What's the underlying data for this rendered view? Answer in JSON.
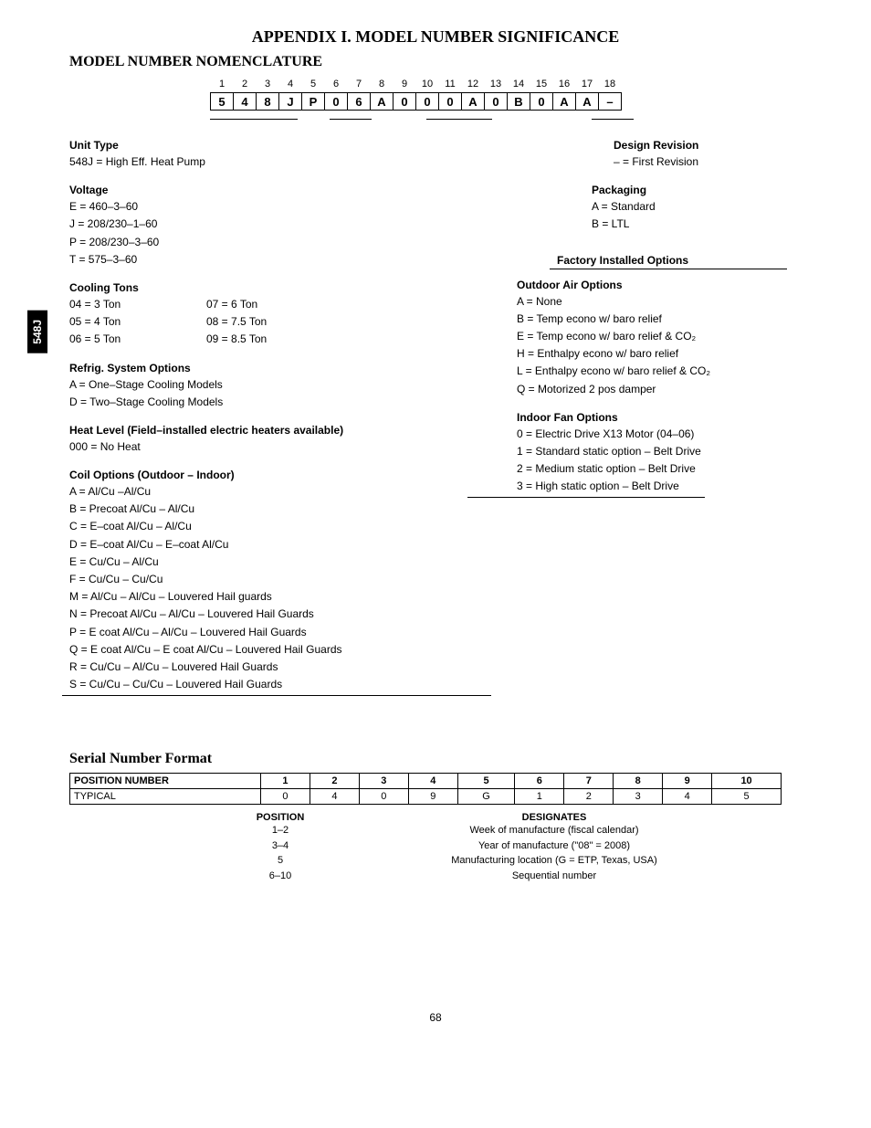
{
  "side_tab": "548J",
  "appendix_title": "APPENDIX I. MODEL NUMBER SIGNIFICANCE",
  "nomenclature_heading": "MODEL NUMBER NOMENCLATURE",
  "position_numbers": [
    "1",
    "2",
    "3",
    "4",
    "5",
    "6",
    "7",
    "8",
    "9",
    "10",
    "11",
    "12",
    "13",
    "14",
    "15",
    "16",
    "17",
    "18"
  ],
  "position_chars": [
    "5",
    "4",
    "8",
    "J",
    "P",
    "0",
    "6",
    "A",
    "0",
    "0",
    "0",
    "A",
    "0",
    "B",
    "0",
    "A",
    "A",
    "–"
  ],
  "left": {
    "unit_type": {
      "head": "Unit Type",
      "lines": [
        "548J = High Eff. Heat Pump"
      ]
    },
    "voltage": {
      "head": "Voltage",
      "lines": [
        "E = 460–3–60",
        "J = 208/230–1–60",
        "P = 208/230–3–60",
        "T = 575–3–60"
      ]
    },
    "cooling_tons": {
      "head": "Cooling Tons",
      "colA": [
        "04 = 3 Ton",
        "05 = 4 Ton",
        "06 = 5 Ton"
      ],
      "colB": [
        "07 = 6 Ton",
        "08 = 7.5 Ton",
        "09 = 8.5 Ton"
      ]
    },
    "refrig": {
      "head": "Refrig. System Options",
      "lines": [
        "A = One–Stage Cooling Models",
        "D = Two–Stage Cooling Models"
      ]
    },
    "heat_level": {
      "head": "Heat Level (Field–installed electric heaters available)",
      "lines": [
        "000 = No Heat"
      ]
    },
    "coil": {
      "head": "Coil Options (Outdoor – Indoor)",
      "lines": [
        "A = Al/Cu –Al/Cu",
        "B = Precoat Al/Cu – Al/Cu",
        "C = E–coat Al/Cu – Al/Cu",
        "D = E–coat Al/Cu – E–coat Al/Cu",
        "E = Cu/Cu – Al/Cu",
        "F = Cu/Cu – Cu/Cu",
        "M = Al/Cu – Al/Cu – Louvered Hail guards",
        "N = Precoat Al/Cu – Al/Cu – Louvered Hail Guards",
        "P = E coat Al/Cu – Al/Cu – Louvered Hail Guards",
        "Q = E coat Al/Cu – E coat Al/Cu – Louvered Hail Guards",
        "R = Cu/Cu – Al/Cu – Louvered Hail Guards",
        "S = Cu/Cu – Cu/Cu – Louvered Hail Guards"
      ]
    }
  },
  "right": {
    "design_revision": {
      "head": "Design Revision",
      "lines": [
        "– = First Revision"
      ]
    },
    "packaging": {
      "head": "Packaging",
      "lines": [
        "A = Standard",
        "B = LTL"
      ]
    },
    "factory": {
      "head": "Factory Installed Options"
    },
    "outdoor_air": {
      "head": "Outdoor Air Options",
      "lines": [
        "A = None",
        "B = Temp econo w/ baro relief",
        "E = Temp econo w/ baro relief & CO₂",
        "H = Enthalpy econo w/ baro relief",
        "L = Enthalpy econo w/ baro relief & CO₂",
        "Q = Motorized 2 pos damper"
      ]
    },
    "indoor_fan": {
      "head": "Indoor Fan Options",
      "lines": [
        "0 = Electric Drive X13 Motor (04–06)",
        "1 = Standard static option – Belt Drive",
        "2 = Medium static option – Belt Drive",
        "3 = High static option – Belt Drive"
      ]
    }
  },
  "serial_heading": "Serial Number Format",
  "serial_table": {
    "row1_label": "POSITION NUMBER",
    "row1": [
      "1",
      "2",
      "3",
      "4",
      "5",
      "6",
      "7",
      "8",
      "9",
      "10"
    ],
    "row2_label": "TYPICAL",
    "row2": [
      "0",
      "4",
      "0",
      "9",
      "G",
      "1",
      "2",
      "3",
      "4",
      "5"
    ]
  },
  "designates": {
    "head_left": "POSITION",
    "head_right": "DESIGNATES",
    "rows": [
      {
        "pos": "1–2",
        "desc": "Week of manufacture (fiscal calendar)"
      },
      {
        "pos": "3–4",
        "desc": "Year of manufacture (\"08\" = 2008)"
      },
      {
        "pos": "5",
        "desc": "Manufacturing location (G = ETP, Texas, USA)"
      },
      {
        "pos": "6–10",
        "desc": "Sequential number"
      }
    ]
  },
  "page_num": "68"
}
